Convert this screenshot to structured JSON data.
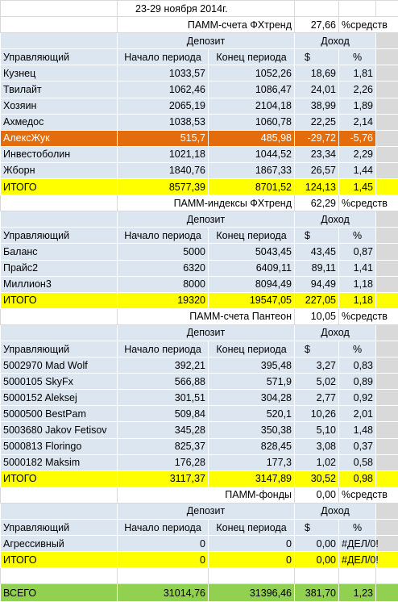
{
  "date": "23-29 ноября 2014г.",
  "headers": {
    "deposit": "Депозит",
    "income": "Доход",
    "manager": "Управляющий",
    "start": "Начало периода",
    "end": "Конец периода",
    "usd": "$",
    "pct": "%"
  },
  "sections": [
    {
      "title": "ПАММ-счета ФХтренд",
      "share": "27,66",
      "share_unit": "%средств",
      "rows": [
        [
          "Кузнец",
          "1033,57",
          "1052,26",
          "18,69",
          "1,81"
        ],
        [
          "Твилайт",
          "1062,46",
          "1086,47",
          "24,01",
          "2,26"
        ],
        [
          "Хозяин",
          "2065,19",
          "2104,18",
          "38,99",
          "1,89"
        ],
        [
          "Ахмедос",
          "1038,53",
          "1060,78",
          "22,25",
          "2,14"
        ],
        [
          "АлексЖук",
          "515,7",
          "485,98",
          "-29,72",
          "-5,76"
        ],
        [
          "Инвестоболин",
          "1021,18",
          "1044,52",
          "23,34",
          "2,29"
        ],
        [
          "Жборн",
          "1840,76",
          "1867,33",
          "26,57",
          "1,44"
        ]
      ],
      "total": [
        "ИТОГО",
        "8577,39",
        "8701,52",
        "124,13",
        "1,45"
      ]
    },
    {
      "title": "ПАММ-индексы ФХтренд",
      "share": "62,29",
      "share_unit": "%средств",
      "rows": [
        [
          "Баланс",
          "5000",
          "5043,45",
          "43,45",
          "0,87"
        ],
        [
          "Прайс2",
          "6320",
          "6409,11",
          "89,11",
          "1,41"
        ],
        [
          "Миллион3",
          "8000",
          "8094,49",
          "94,49",
          "1,18"
        ]
      ],
      "total": [
        "ИТОГО",
        "19320",
        "19547,05",
        "227,05",
        "1,18"
      ]
    },
    {
      "title": "ПАММ-счета Пантеон",
      "share": "10,05",
      "share_unit": "%средств",
      "rows": [
        [
          "5002970 Mad Wolf",
          "392,21",
          "395,48",
          "3,27",
          "0,83"
        ],
        [
          "5000105 SkyFx",
          "566,88",
          "571,9",
          "5,02",
          "0,89"
        ],
        [
          "5000152 Aleksej",
          "301,51",
          "304,28",
          "2,77",
          "0,92"
        ],
        [
          "5000500 BestPam",
          "509,84",
          "520,1",
          "10,26",
          "2,01"
        ],
        [
          "5003680 Jakov Fetisov",
          "345,28",
          "350,38",
          "5,10",
          "1,48"
        ],
        [
          "5000813 Floringo",
          "825,37",
          "828,45",
          "3,08",
          "0,37"
        ],
        [
          "5000182 Maksim",
          "176,28",
          "177,3",
          "1,02",
          "0,58"
        ]
      ],
      "total": [
        "ИТОГО",
        "3117,37",
        "3147,89",
        "30,52",
        "0,98"
      ]
    },
    {
      "title": "ПАММ-фонды",
      "share": "0,00",
      "share_unit": "%средств",
      "rows": [
        [
          "Агрессивный",
          "0",
          "0",
          "0,00",
          "#ДЕЛ/0!"
        ]
      ],
      "total": [
        "ИТОГО",
        "0",
        "0",
        "0,00",
        "#ДЕЛ/0!"
      ]
    }
  ],
  "grand_total": [
    "ВСЕГО",
    "31014,76",
    "31396,46",
    "381,70",
    "1,23"
  ]
}
